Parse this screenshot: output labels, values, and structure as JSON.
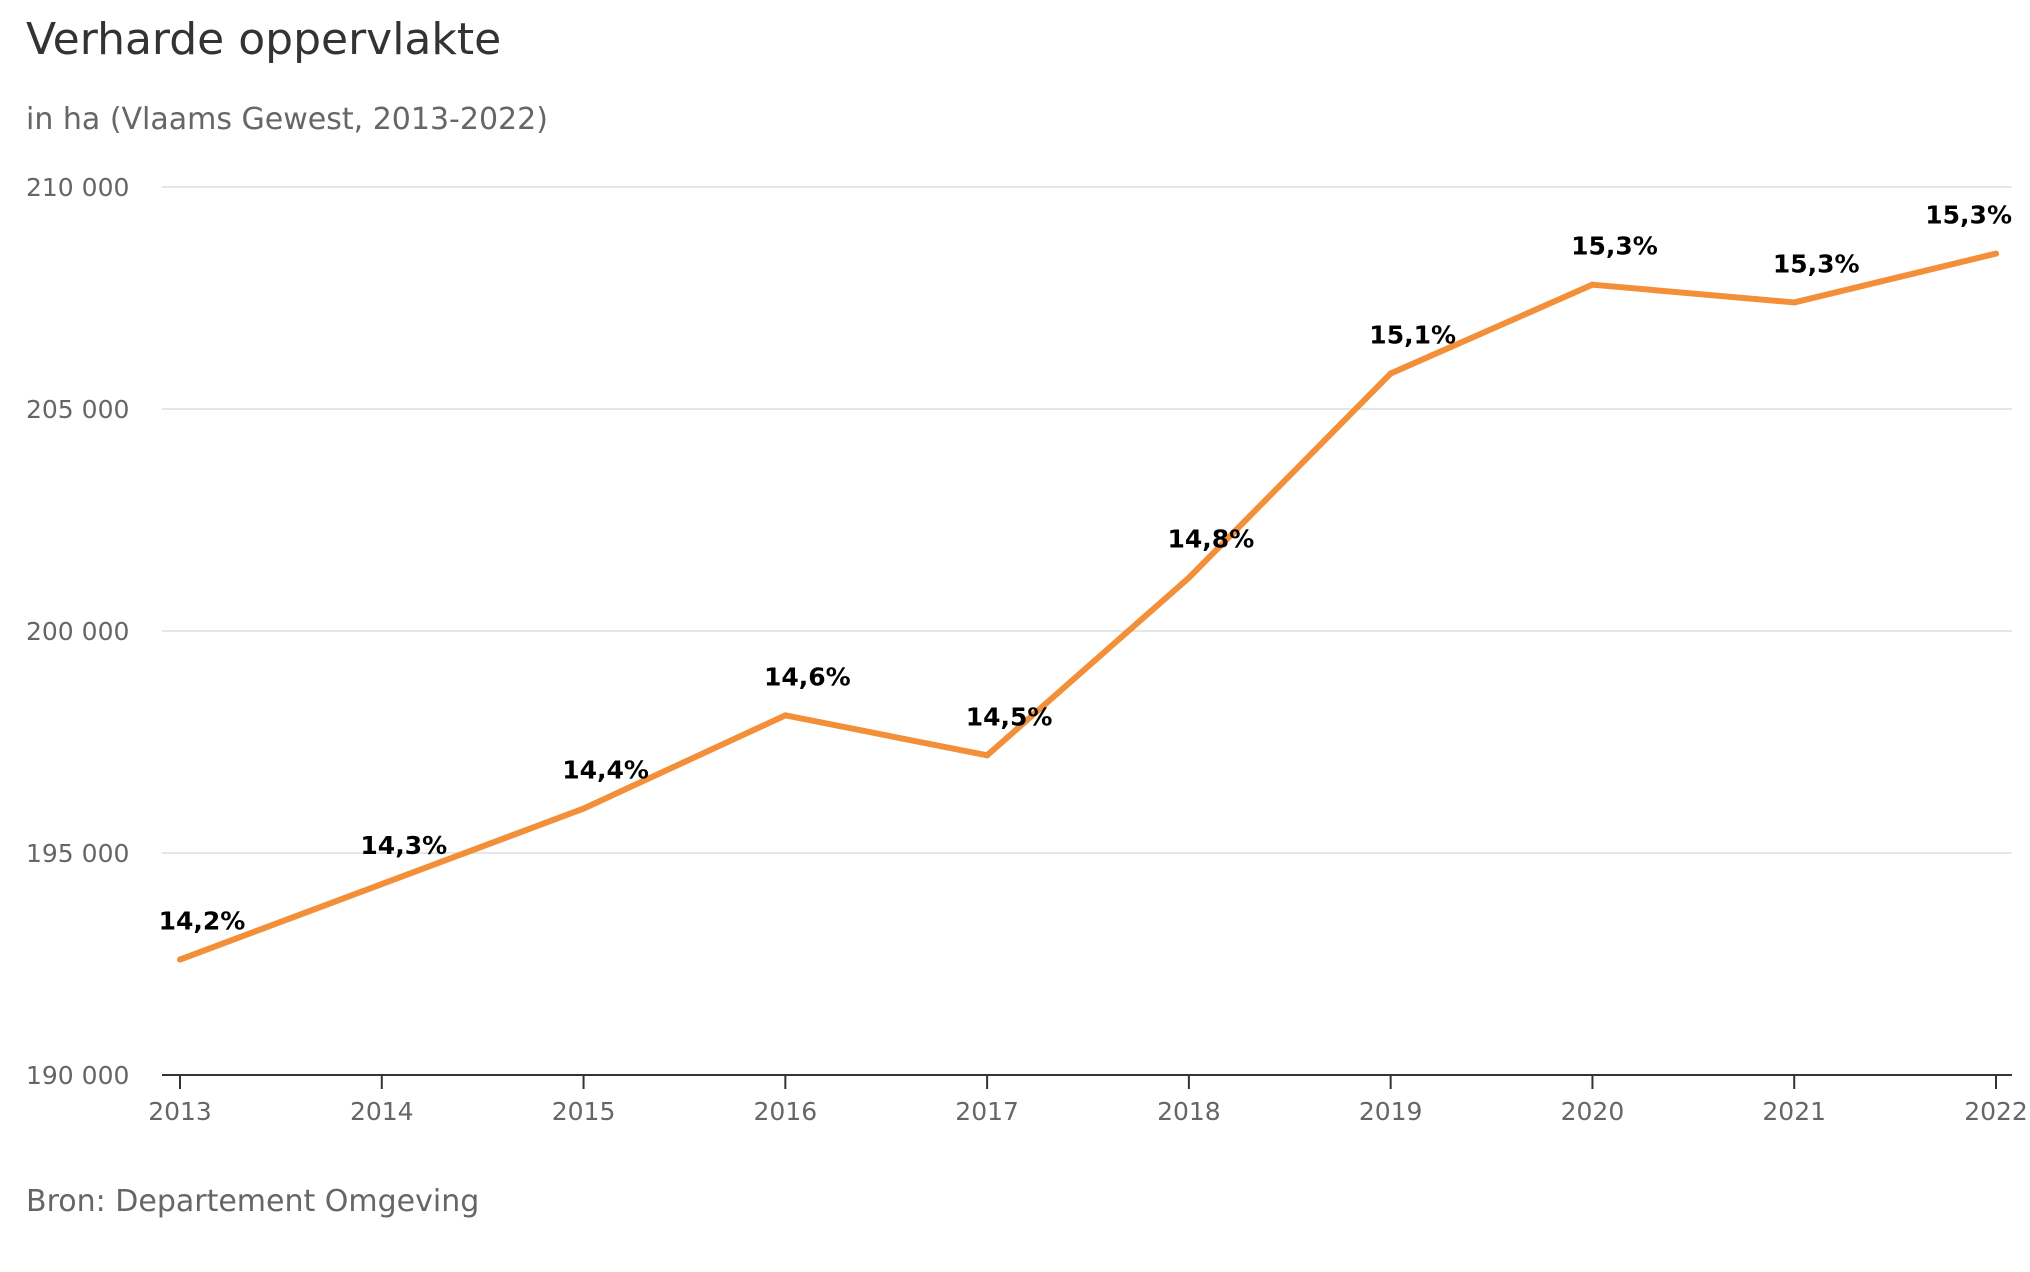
{
  "chart_data": {
    "type": "line",
    "title": "Verharde oppervlakte",
    "subtitle": "in ha (Vlaams Gewest, 2013-2022)",
    "source": "Bron: Departement Omgeving",
    "x": [
      "2013",
      "2014",
      "2015",
      "2016",
      "2017",
      "2018",
      "2019",
      "2020",
      "2021",
      "2022"
    ],
    "yticks": [
      190000,
      195000,
      200000,
      205000,
      210000
    ],
    "ytick_labels": [
      "190 000",
      "195 000",
      "200 000",
      "205 000",
      "210 000"
    ],
    "ylim": [
      190000,
      210000
    ],
    "grid": true,
    "legend": "none",
    "series": [
      {
        "name": "Verharde oppervlakte",
        "color": "#f28f38",
        "values": [
          192600,
          194300,
          196000,
          198100,
          197200,
          201200,
          205800,
          207800,
          207400,
          208500
        ],
        "data_labels": [
          "14,2%",
          "14,3%",
          "14,4%",
          "14,6%",
          "14,5%",
          "14,8%",
          "15,1%",
          "15,3%",
          "15,3%",
          "15,3%"
        ]
      }
    ]
  }
}
